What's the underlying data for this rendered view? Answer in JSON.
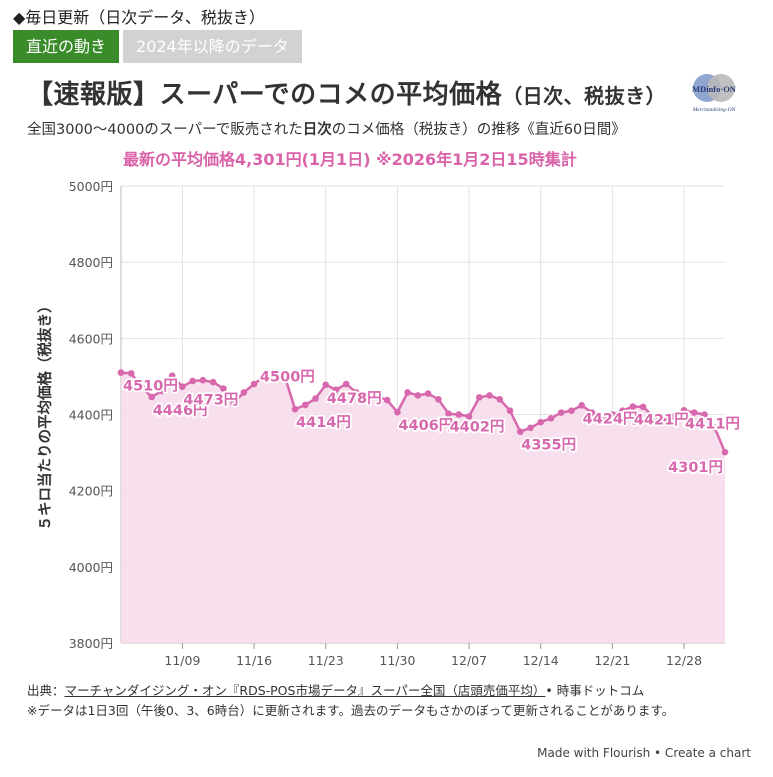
{
  "header": {
    "top_note": "◆毎日更新（日次データ、税抜き）",
    "tabs": [
      {
        "label": "直近の動き",
        "active": true
      },
      {
        "label": "2024年以降のデータ",
        "active": false
      }
    ]
  },
  "title_main": "【速報版】スーパーでのコメの平均価格",
  "title_paren": "（日次、税抜き）",
  "logo_text": {
    "top": "MDinfo·ON",
    "bottom": "Merchandising-ON"
  },
  "subtitle_prefix": "全国3000〜4000のスーパーで販売された",
  "subtitle_bold": "日次",
  "subtitle_suffix": "のコメ価格（税抜き）の推移《直近60日間》",
  "latest_note": "最新の平均価格4,301円(1月1日) ※2026年1月2日15時集計",
  "colors": {
    "line": "#d868ad",
    "fill": "#f6dcec",
    "grid": "#e2e2e2",
    "tab_active": "#3a8c2a",
    "tab_inactive": "#d2d2d2"
  },
  "chart_data": {
    "type": "area",
    "ylabel": "５キロ当たりの平均価格（税抜き）",
    "ylim": [
      3800,
      5000
    ],
    "y_ticks": [
      3800,
      4000,
      4200,
      4400,
      4600,
      4800,
      5000
    ],
    "y_tick_suffix": "円",
    "x_tick_labels": [
      "11/09",
      "11/16",
      "11/23",
      "11/30",
      "12/07",
      "12/14",
      "12/21",
      "12/28"
    ],
    "x_tick_index": [
      6,
      13,
      20,
      27,
      34,
      41,
      48,
      55
    ],
    "series": [
      {
        "values": [
          4510,
          4508,
          4472,
          4446,
          4462,
          4502,
          4473,
          4488,
          4490,
          4485,
          4468,
          4430,
          4458,
          4480,
          4500,
          4492,
          4500,
          4414,
          4425,
          4442,
          4478,
          4465,
          4480,
          4458,
          4442,
          4448,
          4438,
          4406,
          4458,
          4450,
          4455,
          4440,
          4402,
          4400,
          4395,
          4445,
          4450,
          4440,
          4410,
          4355,
          4365,
          4380,
          4390,
          4405,
          4410,
          4424,
          4405,
          4390,
          4400,
          4410,
          4421,
          4420,
          4395,
          4385,
          4395,
          4411,
          4405,
          4400,
          4365,
          4301
        ]
      }
    ],
    "annotations": [
      {
        "label": "4510円",
        "index": 0,
        "pos": "below"
      },
      {
        "label": "4446円",
        "index": 3,
        "pos": "below"
      },
      {
        "label": "4473円",
        "index": 6,
        "pos": "below"
      },
      {
        "label": "4500円",
        "index": 16,
        "pos": "left"
      },
      {
        "label": "4414円",
        "index": 17,
        "pos": "below"
      },
      {
        "label": "4478円",
        "index": 20,
        "pos": "below"
      },
      {
        "label": "4406円",
        "index": 27,
        "pos": "below"
      },
      {
        "label": "4402円",
        "index": 32,
        "pos": "below"
      },
      {
        "label": "4355円",
        "index": 39,
        "pos": "below"
      },
      {
        "label": "4424円",
        "index": 45,
        "pos": "below"
      },
      {
        "label": "4421円",
        "index": 50,
        "pos": "below"
      },
      {
        "label": "4411円",
        "index": 55,
        "pos": "below"
      },
      {
        "label": "4301円",
        "index": 59,
        "pos": "below"
      }
    ]
  },
  "footer": {
    "source_label": "出典：",
    "source_link": "マーチャンダイジング・オン『RDS-POS市場データ』スーパー全国（店頭売価平均）",
    "source_suffix": "• 時事ドットコム",
    "note": "※データは1日3回（午後0、3、6時台）に更新されます。過去のデータもさかのぼって更新されることがあります。"
  },
  "credit": "Made with Flourish • Create a chart"
}
